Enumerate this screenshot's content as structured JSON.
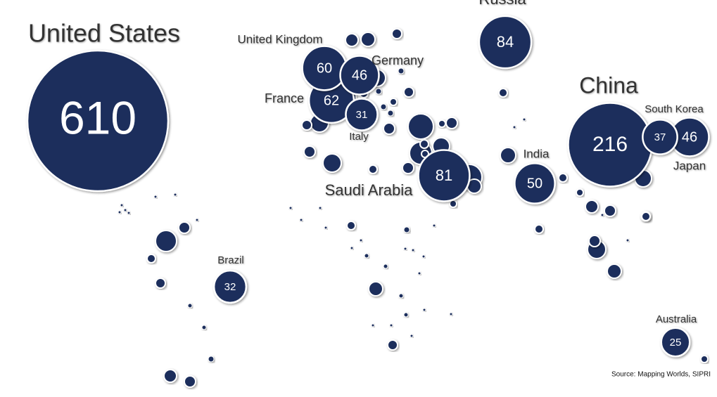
{
  "chart_data": {
    "type": "bubble-map",
    "countries": [
      {
        "name": "United States",
        "value": 610
      },
      {
        "name": "China",
        "value": 216
      },
      {
        "name": "Russia",
        "value": 84
      },
      {
        "name": "Saudi Arabia",
        "value": 81
      },
      {
        "name": "France",
        "value": 62
      },
      {
        "name": "United Kingdom",
        "value": 60
      },
      {
        "name": "India",
        "value": 50
      },
      {
        "name": "Germany",
        "value": 46
      },
      {
        "name": "Japan",
        "value": 46
      },
      {
        "name": "South Korea",
        "value": 37
      },
      {
        "name": "Brazil",
        "value": 32
      },
      {
        "name": "Italy",
        "value": 31
      },
      {
        "name": "Australia",
        "value": 25
      }
    ],
    "color": "#1b2d5b",
    "source": "Source: Mapping Worlds, SIPRI"
  }
}
